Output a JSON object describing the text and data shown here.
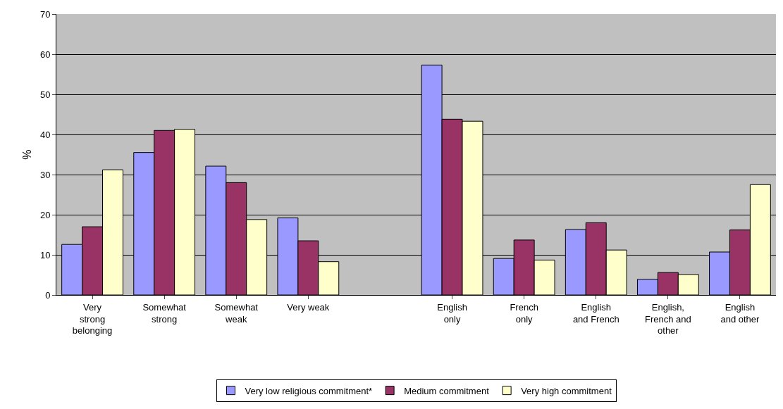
{
  "chart_data": {
    "type": "bar",
    "ylabel": "%",
    "categories": [
      "Very\nstrong\nbelonging",
      "Somewhat\nstrong",
      "Somewhat\nweak",
      "Very weak",
      null,
      "English\nonly",
      "French\nonly",
      "English\nand French",
      "English,\nFrench and\nother",
      "English\nand other"
    ],
    "series": [
      {
        "name": "Very low religious commitment*",
        "color": "#9999ff",
        "values": [
          12.6,
          35.5,
          32.1,
          19.2,
          null,
          57.3,
          9.1,
          16.3,
          3.9,
          10.7
        ]
      },
      {
        "name": "Medium commitment",
        "color": "#993366",
        "values": [
          17.0,
          41.0,
          28.0,
          13.5,
          null,
          43.8,
          13.7,
          18.0,
          5.6,
          16.2
        ]
      },
      {
        "name": "Very high commitment",
        "color": "#ffffcc",
        "values": [
          31.2,
          41.3,
          18.8,
          8.3,
          null,
          43.3,
          8.7,
          11.2,
          5.1,
          27.5
        ]
      }
    ],
    "ylim": [
      0,
      70
    ],
    "yticks": [
      0,
      10,
      20,
      30,
      40,
      50,
      60,
      70
    ],
    "grid": "y",
    "legend": "bottom"
  }
}
